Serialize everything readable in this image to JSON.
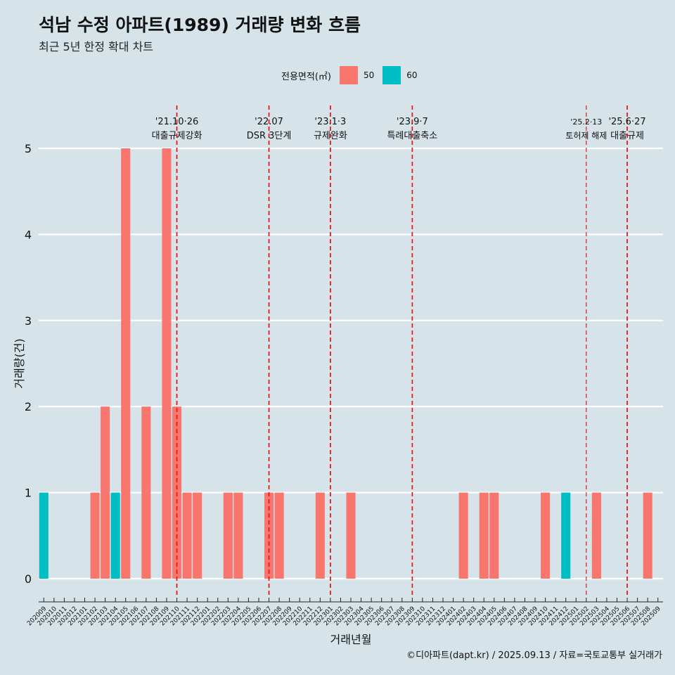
{
  "header": {
    "title": "석남 수정 아파트(1989) 거래량 변화 흐름",
    "subtitle": "최근 5년 한정 확대 차트"
  },
  "legend": {
    "title": "전용면적(㎡)",
    "items": [
      {
        "label": "50",
        "color": "#f8766d"
      },
      {
        "label": "60",
        "color": "#00bfc4"
      }
    ]
  },
  "caption": "©디아파트(dapt.kr) / 2025.09.13 / 자료=국토교통부 실거래가",
  "chart_data": {
    "type": "bar",
    "xlabel": "거래년월",
    "ylabel": "거래량(건)",
    "ylim": [
      0,
      5
    ],
    "yticks": [
      0,
      1,
      2,
      3,
      4,
      5
    ],
    "grid": true,
    "legend_position": "top",
    "categories": [
      "202009",
      "202010",
      "202011",
      "202012",
      "202101",
      "202102",
      "202103",
      "202104",
      "202105",
      "202106",
      "202107",
      "202108",
      "202109",
      "202110",
      "202111",
      "202112",
      "202201",
      "202202",
      "202203",
      "202204",
      "202205",
      "202206",
      "202207",
      "202208",
      "202209",
      "202210",
      "202211",
      "202212",
      "202301",
      "202302",
      "202303",
      "202304",
      "202305",
      "202306",
      "202307",
      "202308",
      "202309",
      "202310",
      "202311",
      "202312",
      "202401",
      "202402",
      "202403",
      "202404",
      "202405",
      "202406",
      "202407",
      "202408",
      "202409",
      "202410",
      "202411",
      "202412",
      "202501",
      "202502",
      "202503",
      "202504",
      "202505",
      "202506",
      "202507",
      "202508",
      "202509"
    ],
    "series": [
      {
        "name": "50",
        "color": "#f8766d",
        "values": [
          0,
          0,
          0,
          0,
          0,
          1,
          2,
          0,
          5,
          0,
          2,
          0,
          5,
          2,
          1,
          1,
          0,
          0,
          1,
          1,
          0,
          0,
          1,
          1,
          0,
          0,
          0,
          1,
          0,
          0,
          1,
          0,
          0,
          0,
          0,
          0,
          0,
          0,
          0,
          0,
          0,
          1,
          0,
          1,
          1,
          0,
          0,
          0,
          0,
          1,
          0,
          0,
          0,
          0,
          1,
          0,
          0,
          0,
          0,
          1,
          0
        ]
      },
      {
        "name": "60",
        "color": "#00bfc4",
        "values": [
          1,
          0,
          0,
          0,
          0,
          0,
          0,
          1,
          0,
          0,
          0,
          0,
          0,
          0,
          0,
          0,
          0,
          0,
          0,
          0,
          0,
          0,
          0,
          0,
          0,
          0,
          0,
          0,
          0,
          0,
          0,
          0,
          0,
          0,
          0,
          0,
          0,
          0,
          0,
          0,
          0,
          0,
          0,
          0,
          0,
          0,
          0,
          0,
          0,
          0,
          0,
          1,
          0,
          0,
          0,
          0,
          0,
          0,
          0,
          0,
          0
        ]
      }
    ],
    "annotations": [
      {
        "x": "202110",
        "date": "'21.10·26",
        "text": "대출규제강화"
      },
      {
        "x": "202207",
        "date": "'22.07",
        "text": "DSR 3단계"
      },
      {
        "x": "202301",
        "date": "'23.1·3",
        "text": "규제완화"
      },
      {
        "x": "202309",
        "date": "'23.9·7",
        "text": "특례대출축소"
      },
      {
        "x": "202502",
        "date": "'25.2·13",
        "text": "토허제 해제"
      },
      {
        "x": "202506",
        "date": "'25.6·27",
        "text": "대출규제"
      }
    ]
  }
}
